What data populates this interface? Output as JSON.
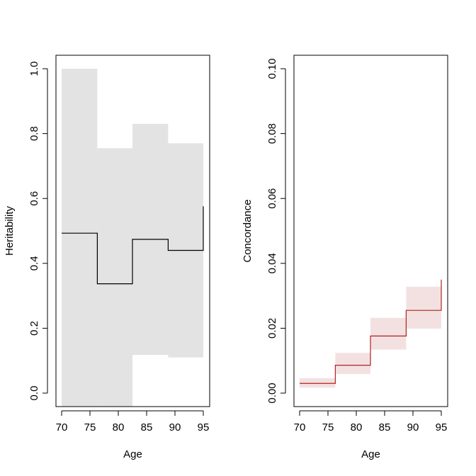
{
  "chart_data": [
    {
      "type": "line",
      "step": true,
      "xlabel": "Age",
      "ylabel": "Heritability",
      "xlim": [
        70,
        95
      ],
      "ylim": [
        0.0,
        1.0
      ],
      "x_ticks": [
        70,
        75,
        80,
        85,
        90,
        95
      ],
      "y_ticks": [
        0.0,
        0.2,
        0.4,
        0.6,
        0.8,
        1.0
      ],
      "x_tick_labels": [
        "70",
        "75",
        "80",
        "85",
        "90",
        "95"
      ],
      "y_tick_labels": [
        "0.0",
        "0.2",
        "0.4",
        "0.6",
        "0.8",
        "1.0"
      ],
      "line_color": "#000000",
      "band_color": "#e3e3e3",
      "steps": [
        {
          "x_start": 70.0,
          "x_end": 76.3,
          "estimate": 0.493,
          "lower": 0.0,
          "upper": 1.0
        },
        {
          "x_start": 76.3,
          "x_end": 82.5,
          "estimate": 0.337,
          "lower": 0.0,
          "upper": 0.755
        },
        {
          "x_start": 82.5,
          "x_end": 88.8,
          "estimate": 0.474,
          "lower": 0.118,
          "upper": 0.83
        },
        {
          "x_start": 88.8,
          "x_end": 95.0,
          "estimate": 0.44,
          "lower": 0.11,
          "upper": 0.77
        }
      ],
      "final_point": {
        "x": 95.0,
        "estimate": 0.576
      }
    },
    {
      "type": "line",
      "step": true,
      "xlabel": "Age",
      "ylabel": "Concordance",
      "xlim": [
        70,
        95
      ],
      "ylim": [
        0.0,
        0.1
      ],
      "x_ticks": [
        70,
        75,
        80,
        85,
        90,
        95
      ],
      "y_ticks": [
        0.0,
        0.02,
        0.04,
        0.06,
        0.08,
        0.1
      ],
      "x_tick_labels": [
        "70",
        "75",
        "80",
        "85",
        "90",
        "95"
      ],
      "y_tick_labels": [
        "0.00",
        "0.02",
        "0.04",
        "0.06",
        "0.08",
        "0.10"
      ],
      "line_color": "#b22222",
      "band_color": "#f3e1e1",
      "steps": [
        {
          "x_start": 70.0,
          "x_end": 76.3,
          "estimate": 0.003,
          "lower": 0.0017,
          "upper": 0.0046
        },
        {
          "x_start": 76.3,
          "x_end": 82.5,
          "estimate": 0.0086,
          "lower": 0.0059,
          "upper": 0.0124
        },
        {
          "x_start": 82.5,
          "x_end": 88.8,
          "estimate": 0.0176,
          "lower": 0.0134,
          "upper": 0.0232
        },
        {
          "x_start": 88.8,
          "x_end": 95.0,
          "estimate": 0.0255,
          "lower": 0.0199,
          "upper": 0.0328
        }
      ],
      "final_point": {
        "x": 95.0,
        "estimate": 0.035
      }
    }
  ]
}
